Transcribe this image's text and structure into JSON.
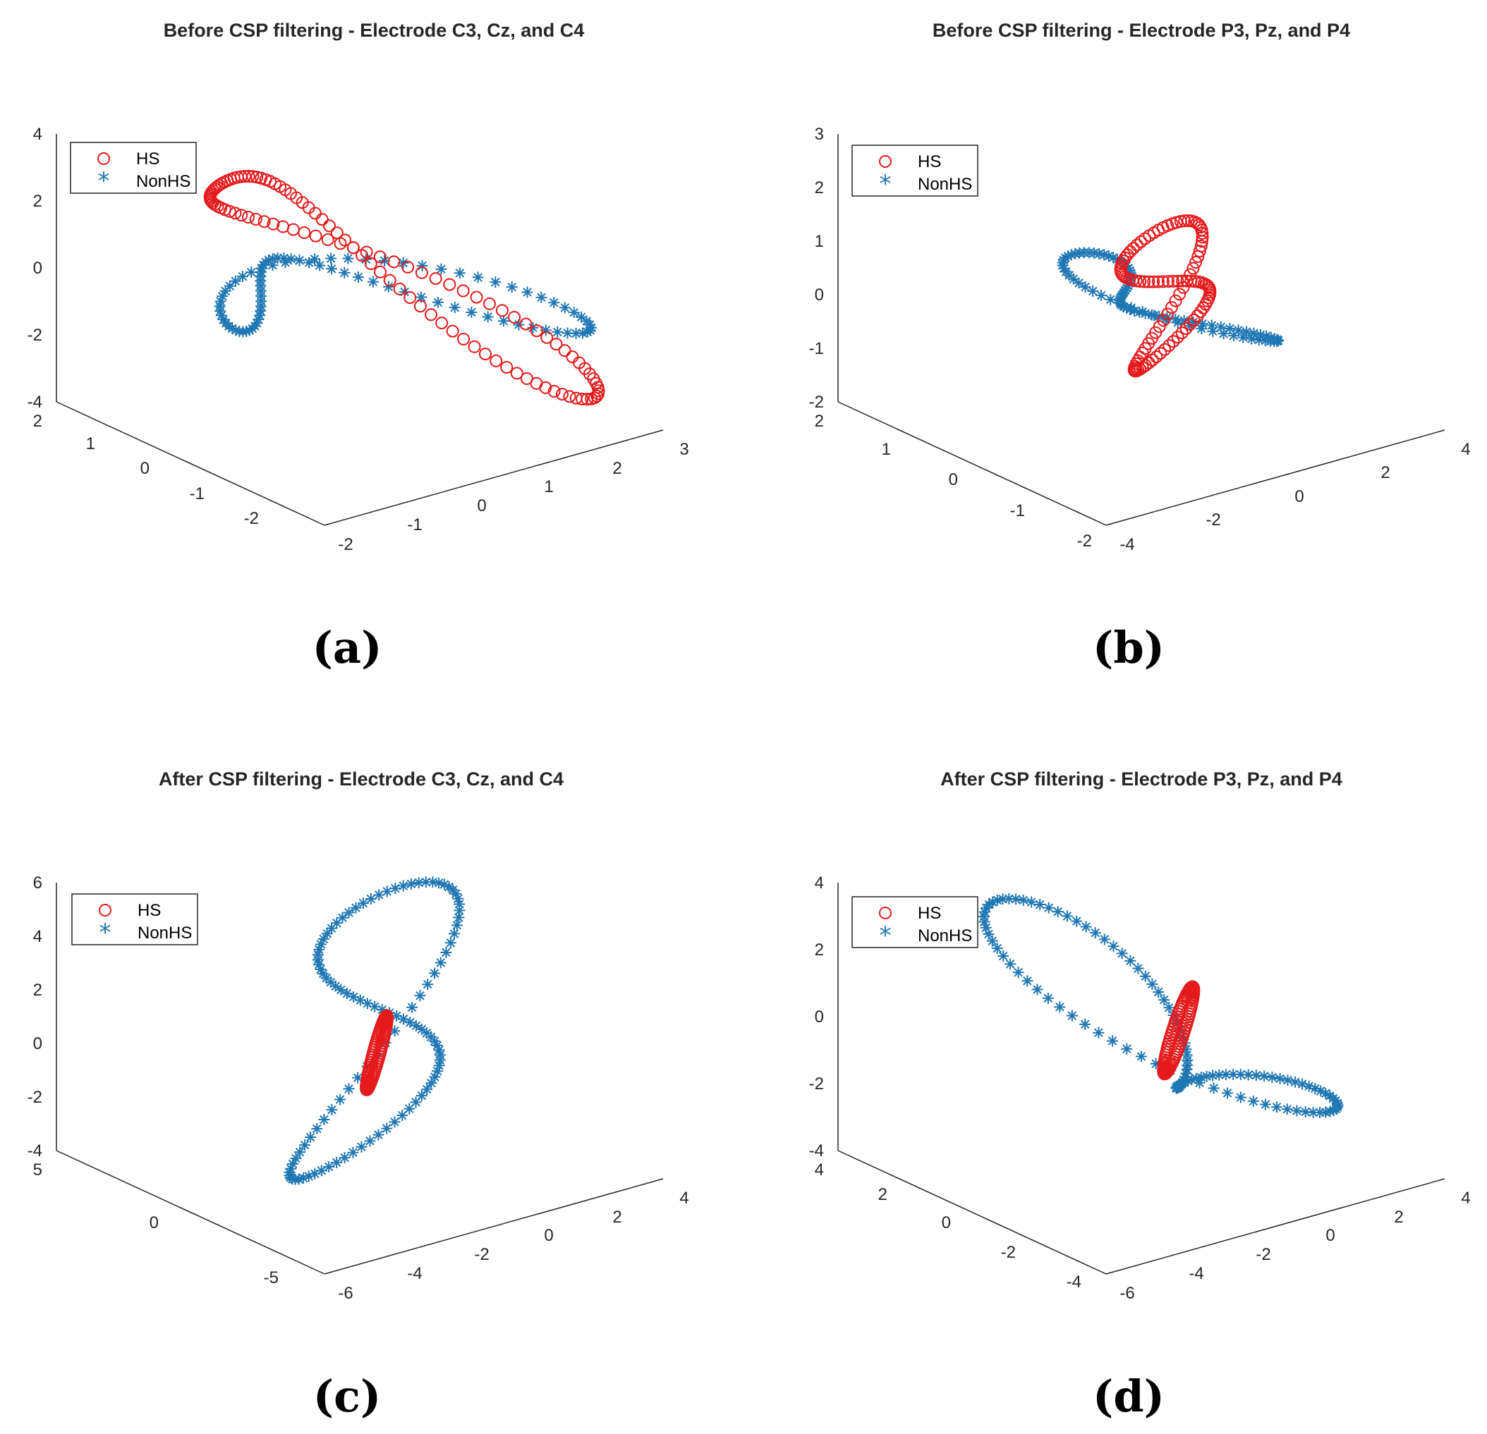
{
  "figure": {
    "colors": {
      "HS": "#e41a1c",
      "NonHS": "#1f77b4",
      "axis": "#262626"
    },
    "markers": {
      "HS": "circle",
      "NonHS": "asterisk"
    }
  },
  "chart_data": [
    {
      "type": "scatter",
      "caption": "(a)",
      "title": "Before CSP filtering - Electrode C3, Cz, and C4",
      "legend": [
        "HS",
        "NonHS"
      ],
      "legend_position": "top-left",
      "grid": false,
      "z_ticks": [
        "4",
        "2",
        "0",
        "-2",
        "-4"
      ],
      "depth_ticks": [
        "2",
        "1",
        "0",
        "-1",
        "-2"
      ],
      "x_ticks": [
        "-2",
        "-1",
        "0",
        "1",
        "2",
        "3"
      ],
      "xlim": [
        -2,
        3
      ],
      "ylim": [
        -2,
        2
      ],
      "zlim": [
        -4,
        4
      ],
      "series": [
        {
          "name": "HS",
          "marker": "circle",
          "color": "#e41a1c",
          "shape": {
            "cx": 0.8,
            "cy": 0.0,
            "cz": 0.2,
            "ax": 1.9,
            "ay": -0.9,
            "az": -3.4,
            "bx": 0.3,
            "by": 0.4,
            "bz": 0.4,
            "k": 2,
            "n": 110
          }
        },
        {
          "name": "NonHS",
          "marker": "asterisk",
          "color": "#1f77b4",
          "shape": {
            "cx": 0.5,
            "cy": 0.0,
            "cz": -0.4,
            "ax": 2.2,
            "ay": -0.3,
            "az": -1.0,
            "bx": 0.3,
            "by": 0.9,
            "bz": 0.3,
            "k": 2,
            "n": 90
          }
        }
      ]
    },
    {
      "type": "scatter",
      "caption": "(b)",
      "title": "Before CSP filtering - Electrode P3, Pz, and P4",
      "legend": [
        "HS",
        "NonHS"
      ],
      "legend_position": "top-left",
      "grid": false,
      "z_ticks": [
        "3",
        "2",
        "1",
        "0",
        "-1",
        "-2"
      ],
      "depth_ticks": [
        "2",
        "1",
        "0",
        "-1",
        "-2"
      ],
      "x_ticks": [
        "-4",
        "-2",
        "0",
        "2",
        "4"
      ],
      "xlim": [
        -4,
        4
      ],
      "ylim": [
        -2,
        2
      ],
      "zlim": [
        -2,
        3
      ],
      "series": [
        {
          "name": "HS",
          "marker": "circle",
          "color": "#e41a1c",
          "shape": {
            "cx": 0.6,
            "cy": 0.0,
            "cz": 0.2,
            "ax": 0.5,
            "ay": 0.2,
            "az": -1.3,
            "bx": 0.8,
            "by": -0.3,
            "bz": 0.5,
            "k": 2,
            "n": 110
          }
        },
        {
          "name": "NonHS",
          "marker": "asterisk",
          "color": "#1f77b4",
          "shape": {
            "cx": 0.3,
            "cy": 0.0,
            "cz": 0.1,
            "ax": -1.6,
            "ay": 0.2,
            "az": 1.0,
            "bx": 0.8,
            "by": 0.5,
            "bz": -0.5,
            "k": 2,
            "n": 90
          }
        }
      ]
    },
    {
      "type": "scatter",
      "caption": "(c)",
      "title": "After CSP filtering - Electrode C3, Cz, and C4",
      "legend": [
        "HS",
        "NonHS"
      ],
      "legend_position": "top-left",
      "grid": false,
      "z_ticks": [
        "6",
        "4",
        "2",
        "0",
        "-2",
        "-4"
      ],
      "depth_ticks": [
        "5",
        "0",
        "-5"
      ],
      "x_ticks": [
        "-6",
        "-4",
        "-2",
        "0",
        "2",
        "4"
      ],
      "xlim": [
        -6,
        4
      ],
      "ylim": [
        -5,
        5
      ],
      "zlim": [
        -4,
        6
      ],
      "series": [
        {
          "name": "HS",
          "marker": "circle",
          "color": "#e41a1c",
          "shape": {
            "cx": -0.5,
            "cy": 0.0,
            "cz": 0.0,
            "ax": 0.1,
            "ay": 0.0,
            "az": 1.2,
            "bx": 0.2,
            "by": 0.1,
            "bz": 0.1,
            "k": 1,
            "n": 90
          }
        },
        {
          "name": "NonHS",
          "marker": "asterisk",
          "color": "#1f77b4",
          "shape": {
            "cx": -0.5,
            "cy": 0.0,
            "cz": 1.0,
            "ax": 1.3,
            "ay": 1.0,
            "az": 4.0,
            "bx": 2.0,
            "by": -1.0,
            "bz": 1.0,
            "k": 2,
            "n": 110
          }
        }
      ]
    },
    {
      "type": "scatter",
      "caption": "(d)",
      "title": "After CSP filtering - Electrode P3, Pz, and P4",
      "legend": [
        "HS",
        "NonHS"
      ],
      "legend_position": "top-left",
      "grid": false,
      "z_ticks": [
        "4",
        "2",
        "0",
        "-2",
        "-4"
      ],
      "depth_ticks": [
        "4",
        "2",
        "0",
        "-2",
        "-4"
      ],
      "x_ticks": [
        "-6",
        "-4",
        "-2",
        "0",
        "2",
        "4"
      ],
      "xlim": [
        -6,
        4
      ],
      "ylim": [
        -4,
        4
      ],
      "zlim": [
        -4,
        4
      ],
      "series": [
        {
          "name": "HS",
          "marker": "circle",
          "color": "#e41a1c",
          "shape": {
            "cx": 0.1,
            "cy": 0.0,
            "cz": -0.3,
            "ax": 0.3,
            "ay": 0.2,
            "az": 0.9,
            "bx": 0.3,
            "by": -0.2,
            "bz": 0.2,
            "k": 1,
            "n": 90
          }
        },
        {
          "name": "NonHS",
          "marker": "asterisk",
          "color": "#1f77b4",
          "shape": {
            "cx": -0.2,
            "cy": 0.0,
            "cz": -0.3,
            "ax": -2.8,
            "ay": 1.0,
            "az": 3.0,
            "bx": 2.2,
            "by": -0.5,
            "bz": -1.5,
            "k": 2,
            "n": 120
          }
        }
      ]
    }
  ]
}
